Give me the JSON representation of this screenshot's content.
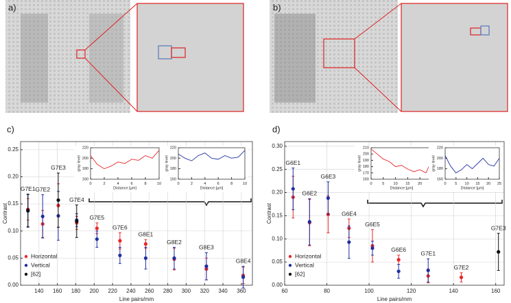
{
  "panels": [
    "a)",
    "b)"
  ],
  "chart_data": [
    {
      "type": "scatter",
      "panel": "c)",
      "xlabel": "Line pairs/mm",
      "ylabel": "Contrast",
      "x": [
        128,
        144,
        161,
        181,
        203,
        228,
        256,
        287,
        322,
        362
      ],
      "labels": [
        "G7E1",
        "G7E2",
        "G7E3",
        "G7E4",
        "G7E5",
        "G7E6",
        "G8E1",
        "G8E2",
        "G8E3",
        "G8E4"
      ],
      "series": [
        {
          "name": "Horizontal",
          "color": "#e8262a",
          "values": [
            0.14,
            0.113,
            0.147,
            0.115,
            0.105,
            0.082,
            0.076,
            0.048,
            0.03,
            0.018
          ],
          "errors": [
            0.02,
            0.025,
            0.04,
            0.012,
            0.01,
            0.015,
            0.008,
            0.02,
            0.02,
            0.015
          ]
        },
        {
          "name": "Vertical",
          "color": "#1f2fa0",
          "values": [
            0.137,
            0.127,
            0.128,
            0.12,
            0.085,
            0.055,
            0.05,
            0.05,
            0.035,
            0.015
          ],
          "errors": [
            0.03,
            0.04,
            0.045,
            0.012,
            0.015,
            0.015,
            0.02,
            0.02,
            0.025,
            0.02
          ]
        },
        {
          "name": "[62]",
          "color": "#111111",
          "values": [
            0.138,
            null,
            0.157,
            0.118,
            null,
            null,
            null,
            null,
            null,
            null
          ],
          "errors": [
            0.03,
            null,
            0.05,
            0.03,
            null,
            null,
            null,
            null,
            null,
            null
          ]
        }
      ],
      "xlim": [
        120,
        372
      ],
      "xticks": [
        140,
        160,
        180,
        200,
        220,
        240,
        260,
        280,
        300,
        320,
        340,
        360
      ],
      "ylim": [
        0,
        0.265
      ],
      "yticks": [
        {
          "value": 0,
          "label": "0.00"
        },
        0.05,
        {
          "value": 0.1,
          "label": "0.10"
        },
        0.15,
        {
          "value": 0.2,
          "label": "0.20"
        },
        0.25
      ],
      "grid": true,
      "legend": "lower left"
    },
    {
      "type": "line",
      "xlabel": "Distance [µm]",
      "ylabel": "gray level",
      "x": [
        0,
        1,
        2,
        3,
        4,
        5,
        6,
        7,
        8,
        9,
        10
      ],
      "series": [
        {
          "color": "#e8262a",
          "values": [
            205,
            188,
            180,
            185,
            193,
            190,
            198,
            196,
            205,
            200,
            215
          ]
        }
      ],
      "xlim": [
        0,
        10
      ],
      "xticks": [
        0,
        2,
        4,
        6,
        8,
        10
      ],
      "ylim": [
        160,
        220
      ],
      "yticks": [
        160,
        180,
        200,
        220
      ]
    },
    {
      "type": "line",
      "xlabel": "Distance [µm]",
      "ylabel": "gray level",
      "x": [
        0,
        1,
        2,
        3,
        4,
        5,
        6,
        7,
        8,
        9,
        10
      ],
      "series": [
        {
          "color": "#1f2fa0",
          "values": [
            208,
            200,
            195,
            205,
            210,
            200,
            198,
            205,
            200,
            202,
            215
          ]
        }
      ],
      "xlim": [
        0,
        10
      ],
      "xticks": [
        0,
        2,
        4,
        6,
        8,
        10
      ],
      "ylim": [
        160,
        220
      ],
      "yticks": [
        160,
        180,
        200,
        220
      ]
    },
    {
      "type": "scatter",
      "panel": "d)",
      "xlabel": "Line pairs/mm",
      "ylabel": "Contrast",
      "x": [
        64,
        71.8,
        80.6,
        90.5,
        101.6,
        114,
        128,
        143.7,
        161.3
      ],
      "labels": [
        "G6E1",
        "G6E2",
        "G6E3",
        "G6E4",
        "G6E5",
        "G6E6",
        "G7E1",
        "G7E2",
        "G7E3"
      ],
      "series": [
        {
          "name": "Horizontal",
          "color": "#e8262a",
          "values": [
            0.19,
            0.135,
            0.153,
            0.123,
            0.085,
            0.055,
            0.02,
            0.017,
            null
          ],
          "errors": [
            0.045,
            0.05,
            0.04,
            0.02,
            0.035,
            0.01,
            0.015,
            0.01,
            null
          ]
        },
        {
          "name": "Vertical",
          "color": "#1f2fa0",
          "values": [
            0.208,
            0.137,
            0.188,
            0.093,
            0.08,
            0.03,
            0.032,
            null,
            null
          ],
          "errors": [
            0.045,
            0.05,
            0.035,
            0.035,
            0.015,
            0.015,
            0.025,
            null,
            null
          ]
        },
        {
          "name": "[62]",
          "color": "#111111",
          "values": [
            null,
            null,
            null,
            null,
            null,
            null,
            null,
            null,
            0.072
          ],
          "errors": [
            null,
            null,
            null,
            null,
            null,
            null,
            null,
            null,
            0.04
          ]
        }
      ],
      "xlim": [
        60,
        164
      ],
      "xticks": [
        60,
        80,
        100,
        120,
        140,
        160
      ],
      "ylim": [
        0,
        0.31
      ],
      "yticks": [
        {
          "value": 0,
          "label": "0.00"
        },
        0.05,
        {
          "value": 0.1,
          "label": "0.10"
        },
        0.15,
        {
          "value": 0.2,
          "label": "0.20"
        },
        0.25,
        {
          "value": 0.3,
          "label": "0.30"
        }
      ],
      "grid": true,
      "legend": "lower left"
    },
    {
      "type": "line",
      "xlabel": "Distance [µm]",
      "ylabel": "gray level",
      "x": [
        0,
        2.5,
        5,
        7.5,
        10,
        12.5,
        15,
        17.5,
        20,
        22.5,
        25
      ],
      "series": [
        {
          "color": "#e8262a",
          "values": [
            208,
            200,
            192,
            188,
            180,
            182,
            176,
            172,
            175,
            170,
            192
          ]
        }
      ],
      "xlim": [
        0,
        25
      ],
      "xticks": [
        0,
        5,
        10,
        15,
        20,
        25
      ],
      "ylim": [
        160,
        210
      ],
      "yticks": [
        160,
        170,
        180,
        190,
        200,
        210
      ]
    },
    {
      "type": "line",
      "xlabel": "Distance [µm]",
      "ylabel": "gray level",
      "x": [
        0,
        2.5,
        5,
        7.5,
        10,
        12.5,
        15,
        17.5,
        20,
        22.5,
        25
      ],
      "series": [
        {
          "color": "#1f2fa0",
          "values": [
            205,
            185,
            172,
            178,
            188,
            180,
            190,
            200,
            188,
            185,
            200
          ]
        }
      ],
      "xlim": [
        0,
        25
      ],
      "xticks": [
        0,
        5,
        10,
        15,
        20,
        25
      ],
      "ylim": [
        160,
        220
      ],
      "yticks": [
        160,
        180,
        200,
        220
      ]
    }
  ]
}
